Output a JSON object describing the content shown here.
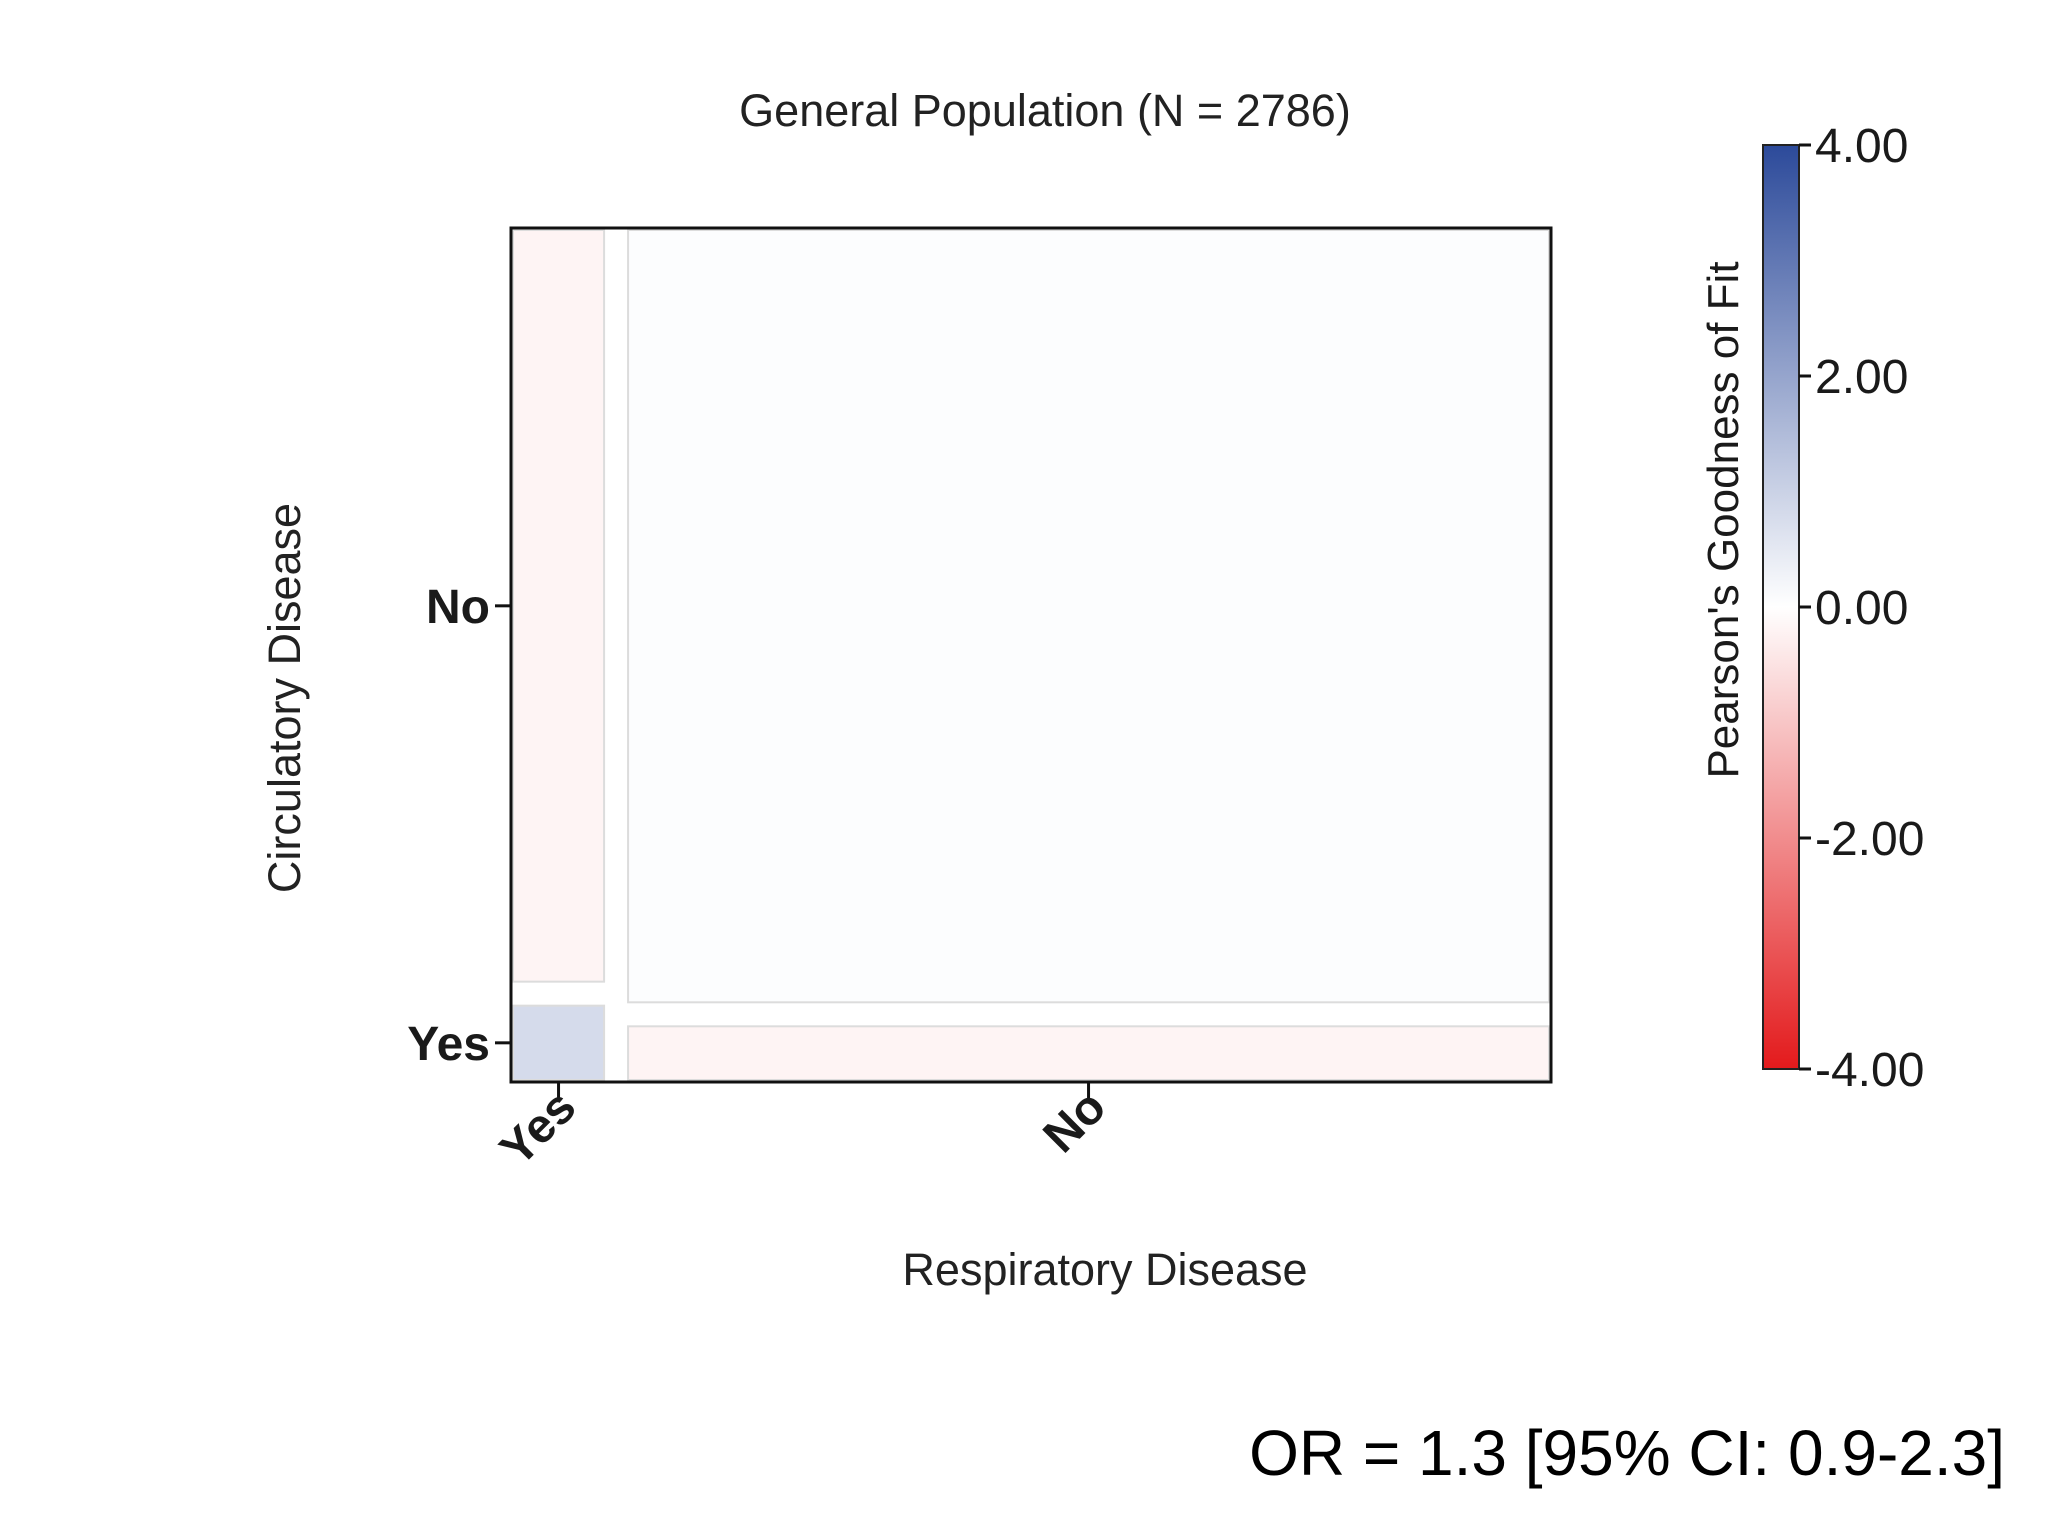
{
  "chart_data": {
    "type": "mosaic",
    "title": "General Population (N = 2786)",
    "xlabel": "Respiratory Disease",
    "ylabel": "Circulatory Disease",
    "x_categories": [
      "Yes",
      "No"
    ],
    "y_categories": [
      "Yes",
      "No"
    ],
    "x_proportions": [
      0.09,
      0.91
    ],
    "y_proportions_within_x": {
      "Yes": {
        "Yes": 0.09,
        "No": 0.91
      },
      "No": {
        "Yes": 0.065,
        "No": 0.935
      }
    },
    "cells": [
      {
        "x": "Yes",
        "y": "Yes",
        "residual": 0.8
      },
      {
        "x": "Yes",
        "y": "No",
        "residual": -0.2
      },
      {
        "x": "No",
        "y": "Yes",
        "residual": -0.2
      },
      {
        "x": "No",
        "y": "No",
        "residual": 0.05
      }
    ],
    "colorbar": {
      "title": "Pearson's Goodness of Fit",
      "min": -4.0,
      "max": 4.0,
      "ticks": [
        4.0,
        2.0,
        0.0,
        -2.0,
        -4.0
      ],
      "tick_labels": [
        "4.00",
        "2.00",
        "0.00",
        "-2.00",
        "-4.00"
      ],
      "colors": {
        "low": "#e31a1c",
        "mid": "#ffffff",
        "high": "#2c4a9a"
      }
    },
    "annotation": "OR =  1.3 [95% CI: 0.9-2.3]"
  }
}
